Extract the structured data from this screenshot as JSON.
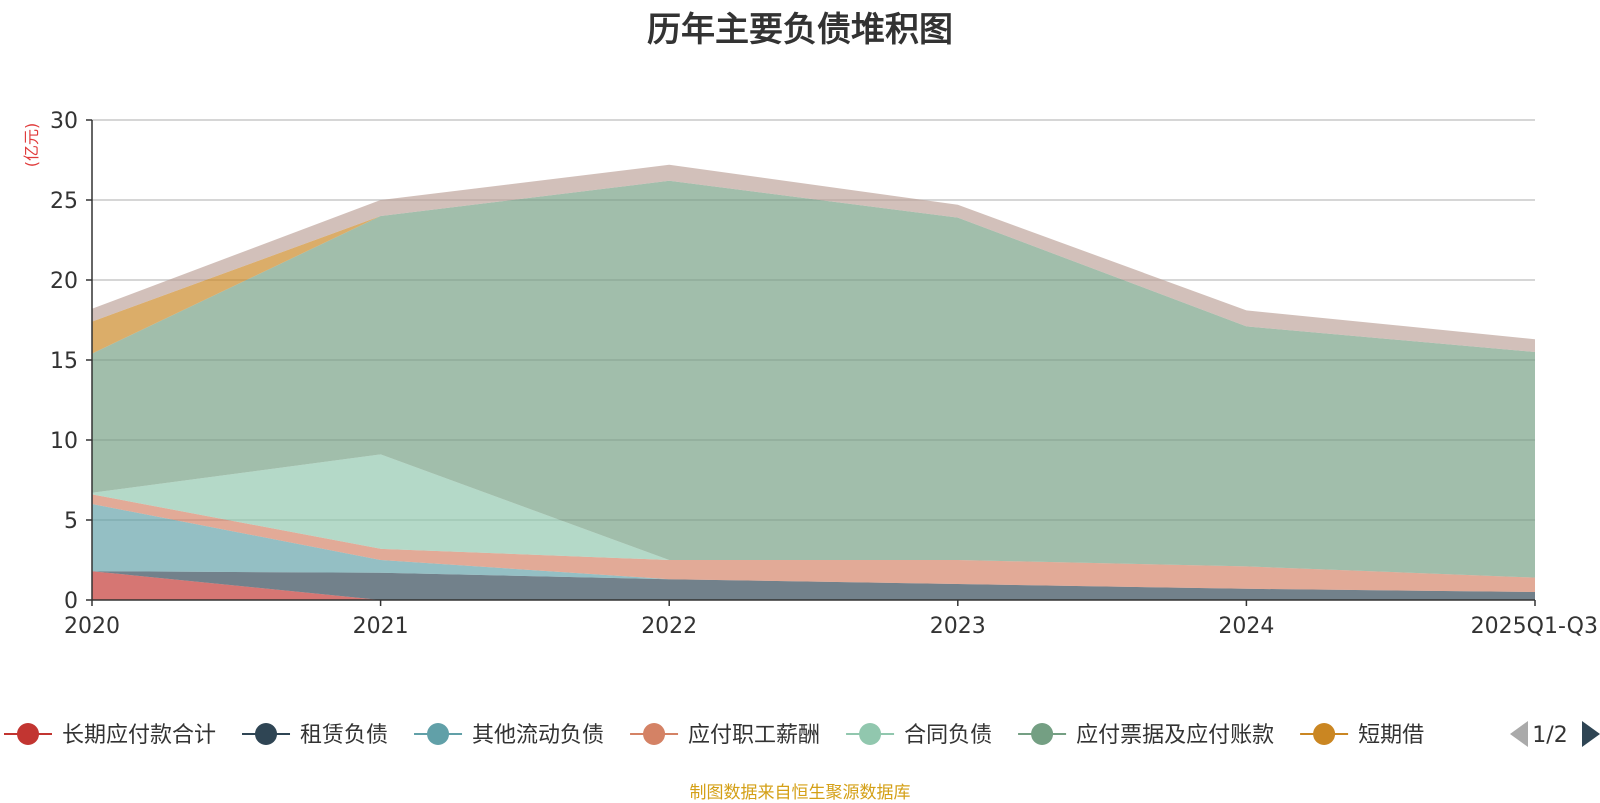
{
  "chart_data": {
    "type": "area",
    "stacked": true,
    "title": "历年主要负债堆积图",
    "y_unit_label": "(亿元)",
    "categories": [
      "2020",
      "2021",
      "2022",
      "2023",
      "2024",
      "2025Q1-Q3"
    ],
    "ylim": [
      0,
      30
    ],
    "y_ticks": [
      0,
      5,
      10,
      15,
      20,
      25,
      30
    ],
    "grid": true,
    "legend_position": "bottom",
    "legend_page": "1/2",
    "series": [
      {
        "name": "长期应付款合计",
        "color": "#c23531",
        "values": [
          1.8,
          0,
          0,
          0,
          0,
          0
        ]
      },
      {
        "name": "租赁负债",
        "color": "#2f4554",
        "values": [
          0,
          1.7,
          1.3,
          1.0,
          0.7,
          0.5
        ]
      },
      {
        "name": "其他流动负债",
        "color": "#61a0a8",
        "values": [
          4.2,
          0.8,
          0,
          0,
          0,
          0
        ]
      },
      {
        "name": "应付职工薪酬",
        "color": "#d48265",
        "values": [
          0.6,
          0.7,
          1.2,
          1.5,
          1.4,
          0.9
        ]
      },
      {
        "name": "合同负债",
        "color": "#91c7ae",
        "values": [
          0.1,
          5.9,
          0,
          0,
          0,
          0
        ]
      },
      {
        "name": "应付票据及应付账款",
        "color": "#749f83",
        "values": [
          8.7,
          14.9,
          23.7,
          21.4,
          15.0,
          14.1
        ]
      },
      {
        "name": "短期借",
        "color": "#ca8622",
        "values": [
          2.0,
          0,
          0,
          0,
          0,
          0
        ]
      },
      {
        "name": "",
        "color": "#bda29a",
        "values": [
          0.8,
          1.0,
          1.0,
          0.8,
          1.0,
          0.8
        ]
      }
    ]
  },
  "source_note": "制图数据来自恒生聚源数据库"
}
